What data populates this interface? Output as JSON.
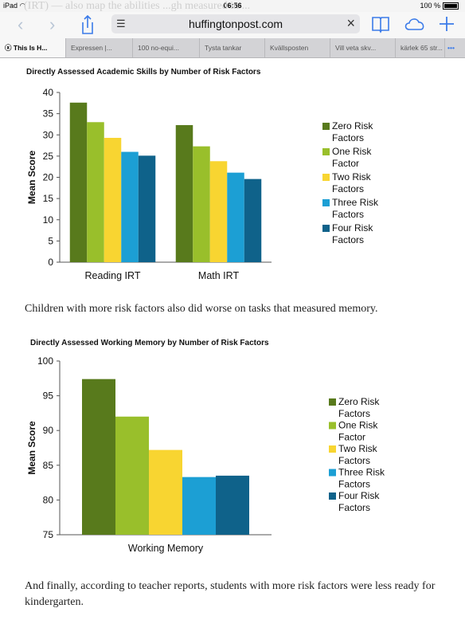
{
  "status": {
    "device": "iPad",
    "time": "06:56",
    "battery": "100 %"
  },
  "toolbar": {
    "url": "huffingtonpost.com"
  },
  "background_text": "(IRT) — also map the abilities ...gh measured in ...",
  "tabs": [
    {
      "label": "This Is H...",
      "active": true
    },
    {
      "label": "Expressen |..."
    },
    {
      "label": "100 no-equi..."
    },
    {
      "label": "Tysta tankar"
    },
    {
      "label": "Kvällsposten"
    },
    {
      "label": "Vill veta skv..."
    },
    {
      "label": "kärlek 65 str..."
    }
  ],
  "more_tabs": "•••",
  "article": {
    "para1": "Children with more risk factors also did worse on tasks that measured memory.",
    "para2": "And finally, according to teacher reports, students with more risk factors were less ready for kindergarten."
  },
  "colors": {
    "zero": "#587a1c",
    "one": "#99bf2b",
    "two": "#f8d531",
    "three": "#1c9fd4",
    "four": "#0f628a"
  },
  "chart_data": [
    {
      "type": "bar",
      "title": "Directly Assessed Academic Skills by Number of Risk Factors",
      "ylabel": "Mean Score",
      "xlabel": "",
      "categories": [
        "Reading IRT",
        "Math IRT"
      ],
      "ylim": [
        0,
        40
      ],
      "yticks": [
        "0",
        "5",
        "10",
        "15",
        "20",
        "25",
        "30",
        "35",
        "40"
      ],
      "legend_position": "right",
      "series": [
        {
          "name": [
            "Zero Risk",
            "Factors"
          ],
          "values": [
            37.6,
            32.3
          ]
        },
        {
          "name": [
            "One Risk",
            "Factor"
          ],
          "values": [
            33.0,
            27.3
          ]
        },
        {
          "name": [
            "Two Risk",
            "Factors"
          ],
          "values": [
            29.3,
            23.8
          ]
        },
        {
          "name": [
            "Three Risk",
            "Factors"
          ],
          "values": [
            26.0,
            21.1
          ]
        },
        {
          "name": [
            "Four Risk",
            "Factors"
          ],
          "values": [
            25.1,
            19.6
          ]
        }
      ]
    },
    {
      "type": "bar",
      "title": "Directly Assessed Working Memory by Number of Risk Factors",
      "ylabel": "Mean Score",
      "xlabel": "",
      "categories": [
        "Working Memory"
      ],
      "ylim": [
        75,
        100
      ],
      "yticks": [
        "75",
        "80",
        "85",
        "90",
        "95",
        "100"
      ],
      "legend_position": "right",
      "series": [
        {
          "name": [
            "Zero Risk",
            "Factors"
          ],
          "values": [
            97.4
          ]
        },
        {
          "name": [
            "One Risk",
            "Factor"
          ],
          "values": [
            92.0
          ]
        },
        {
          "name": [
            "Two Risk",
            "Factors"
          ],
          "values": [
            87.2
          ]
        },
        {
          "name": [
            "Three Risk",
            "Factors"
          ],
          "values": [
            83.3
          ]
        },
        {
          "name": [
            "Four Risk",
            "Factors"
          ],
          "values": [
            83.5
          ]
        }
      ]
    }
  ]
}
